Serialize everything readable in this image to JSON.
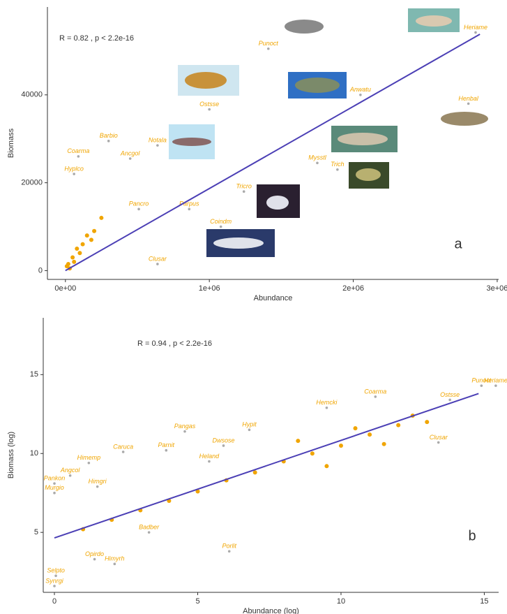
{
  "chart_data": [
    {
      "type": "scatter",
      "annotation": "R = 0.82 , p < 2.2e-16",
      "panel": "a",
      "x_label": "Abundance",
      "y_label": "Biomass",
      "xlim": [
        -125000,
        3010000
      ],
      "ylim": [
        -2000,
        60000
      ],
      "xticks": [
        {
          "value": 0,
          "label": "0e+00"
        },
        {
          "value": 1000000,
          "label": "1e+06"
        },
        {
          "value": 2000000,
          "label": "2e+06"
        },
        {
          "value": 3000000,
          "label": "3e+06"
        }
      ],
      "yticks": [
        0,
        20000,
        40000
      ],
      "point_color": "#f0a500",
      "x": [
        2850000,
        1410000,
        1000000,
        2050000,
        2800000,
        1750000,
        1890000,
        1240000,
        1080000,
        640000,
        640000,
        300000,
        450000,
        90000,
        60000,
        510000,
        860000,
        20000,
        50000,
        80000,
        120000,
        30000,
        150000,
        60000,
        200000,
        100000,
        10000,
        250000,
        180000
      ],
      "y": [
        54200,
        50500,
        36700,
        40000,
        38000,
        24500,
        23000,
        18000,
        10000,
        1500,
        28500,
        29500,
        25500,
        26000,
        22000,
        14000,
        14000,
        1500,
        3000,
        5000,
        6000,
        500,
        8000,
        2000,
        9000,
        4000,
        1000,
        12000,
        7000
      ],
      "labels": [
        "Heriame",
        "Punoct",
        "Ostsse",
        "Anwatu",
        "Henbal",
        "Mysstl",
        "Trich",
        "Tricro",
        "Coindm",
        "Clusar",
        "Notala",
        "Barbio",
        "Ancgol",
        "Coarma",
        "Hyplco",
        "Pancro",
        "Parpus",
        null,
        null,
        null,
        null,
        null,
        null,
        null,
        null,
        null,
        null,
        null,
        null
      ],
      "fit": {
        "x": [
          0,
          2880000
        ],
        "y": [
          0,
          53800
        ],
        "color": "#4b3fb5"
      }
    },
    {
      "type": "scatter",
      "annotation": "R = 0.94 , p < 2.2e-16",
      "panel": "b",
      "x_label": "Abundance (log)",
      "y_label": "Biomass (log)",
      "xlim": [
        -0.39,
        15.5
      ],
      "ylim": [
        1.2,
        18.6
      ],
      "xticks": [
        0,
        5,
        10,
        15
      ],
      "yticks": [
        5,
        10,
        15
      ],
      "point_color": "#f0a500",
      "x": [
        14.9,
        15.4,
        13.8,
        11.2,
        9.5,
        13.4,
        4.55,
        5.9,
        6.8,
        5.4,
        1.2,
        2.4,
        3.9,
        0.55,
        0,
        1.5,
        0,
        6.1,
        3.3,
        2.1,
        1.4,
        0.05,
        0,
        8,
        9,
        10,
        11,
        12,
        7,
        6,
        5,
        4,
        3,
        2,
        1,
        8.5,
        9.5,
        10.5,
        11.5,
        12.5,
        13
      ],
      "y": [
        14.3,
        14.3,
        13.4,
        13.6,
        12.9,
        10.7,
        11.4,
        10.5,
        11.5,
        9.5,
        9.4,
        10.1,
        10.2,
        8.6,
        8.1,
        7.9,
        7.5,
        3.8,
        5.0,
        3.0,
        3.3,
        2.25,
        1.6,
        9.5,
        10,
        10.5,
        11.2,
        11.8,
        8.8,
        8.3,
        7.6,
        7,
        6.4,
        5.8,
        5.2,
        10.8,
        9.2,
        11.6,
        10.6,
        12.4,
        12
      ],
      "labels": [
        "Punoct",
        "Heriame",
        "Ostsse",
        "Coarma",
        "Hemcki",
        "Clusar",
        "Pangas",
        "Dwsose",
        "Hypit",
        "Heland",
        "Himemp",
        "Caruca",
        "Parnit",
        "Angcol",
        "Pankon",
        "Himgri",
        "Murgio",
        "Porlit",
        "Badber",
        "Himyrh",
        "Opirdo",
        "Selpto",
        "Synrgi",
        null,
        null,
        null,
        null,
        null,
        null,
        null,
        null,
        null,
        null,
        null,
        null,
        null,
        null,
        null,
        null,
        null,
        null
      ],
      "fit": {
        "x": [
          0,
          14.8
        ],
        "y": [
          4.65,
          13.8
        ],
        "color": "#4b3fb5"
      }
    }
  ]
}
